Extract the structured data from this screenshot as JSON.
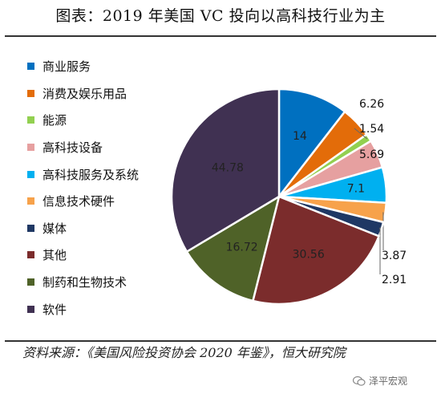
{
  "title": "图表：2019 年美国 VC 投向以高科技行业为主",
  "source": "资料来源：《美国风险投资协会 2020 年鉴》，恒大研究院",
  "watermark": "泽平宏观",
  "chart_data": {
    "type": "pie",
    "categories": [
      "商业服务",
      "消费及娱乐用品",
      "能源",
      "高科技设备",
      "高科技服务及系统",
      "信息技术硬件",
      "媒体",
      "其他",
      "制药和生物技术",
      "软件"
    ],
    "values": [
      14,
      6.26,
      1.54,
      5.69,
      7.1,
      3.87,
      2.91,
      30.56,
      16.72,
      44.78
    ],
    "data_labels": [
      "14",
      "6.26",
      "1.54",
      "5.69",
      "7.1",
      "3.87",
      "2.91",
      "30.56",
      "16.72",
      "44.78"
    ],
    "colors": [
      "#0070c0",
      "#e36c09",
      "#92d050",
      "#e6a0a0",
      "#00b0f0",
      "#f7a24b",
      "#1f3864",
      "#7b2c2c",
      "#4f6228",
      "#403152"
    ],
    "legend_position": "left",
    "start_angle_deg": 0,
    "direction": "clockwise"
  }
}
